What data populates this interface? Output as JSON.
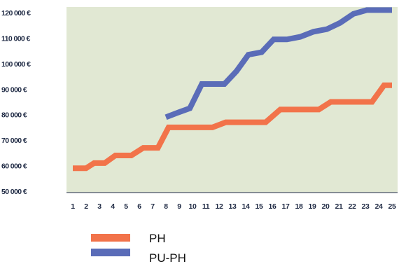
{
  "chart_data": {
    "type": "line",
    "x": [
      1,
      2,
      3,
      4,
      5,
      6,
      7,
      8,
      9,
      10,
      11,
      12,
      13,
      14,
      15,
      16,
      17,
      18,
      19,
      20,
      21,
      22,
      23,
      24,
      25
    ],
    "x_tick_labels": [
      "1",
      "2",
      "3",
      "4",
      "5",
      "6",
      "7",
      "8",
      "9",
      "10",
      "11",
      "12",
      "13",
      "14",
      "15",
      "16",
      "17",
      "18",
      "19",
      "20",
      "21",
      "22",
      "23",
      "24",
      "25"
    ],
    "y_tick_labels": [
      "50 000 €",
      "60 000 €",
      "70 000 €",
      "80 000 €",
      "90 000 €",
      "100 000 €",
      "110 000 €",
      "120 000 €"
    ],
    "y_ticks": [
      50000,
      60000,
      70000,
      80000,
      90000,
      100000,
      110000,
      120000
    ],
    "ylim": [
      50000,
      121000
    ],
    "xlim": [
      1,
      25
    ],
    "grid": false,
    "background_color": "#e1e8d3",
    "series": [
      {
        "name": "PH",
        "color": "#f2734a",
        "points": [
          [
            1,
            59000
          ],
          [
            2,
            59000
          ],
          [
            2.6,
            61000
          ],
          [
            3.4,
            61000
          ],
          [
            4.2,
            64000
          ],
          [
            5.4,
            64000
          ],
          [
            6.3,
            67000
          ],
          [
            7.4,
            67000
          ],
          [
            8.2,
            75000
          ],
          [
            9.4,
            75000
          ],
          [
            10.5,
            75000
          ],
          [
            11.5,
            75000
          ],
          [
            12.5,
            77000
          ],
          [
            13.5,
            77000
          ],
          [
            14.5,
            77000
          ],
          [
            15.5,
            77000
          ],
          [
            16.6,
            82000
          ],
          [
            17.5,
            82000
          ],
          [
            18.5,
            82000
          ],
          [
            19.5,
            82000
          ],
          [
            20.4,
            85000
          ],
          [
            21.5,
            85000
          ],
          [
            22.5,
            85000
          ],
          [
            23.5,
            85000
          ],
          [
            24.4,
            91500
          ],
          [
            25,
            91500
          ]
        ]
      },
      {
        "name": "PU-PH",
        "color": "#5a6cb8",
        "points": [
          [
            8,
            79000
          ],
          [
            9,
            81000
          ],
          [
            9.8,
            82500
          ],
          [
            10.7,
            92000
          ],
          [
            11.5,
            92000
          ],
          [
            12.4,
            92000
          ],
          [
            13.3,
            97000
          ],
          [
            14.2,
            103500
          ],
          [
            15.2,
            104500
          ],
          [
            16.1,
            109500
          ],
          [
            17.1,
            109500
          ],
          [
            18.1,
            110500
          ],
          [
            19.1,
            112500
          ],
          [
            20.1,
            113500
          ],
          [
            21.1,
            116000
          ],
          [
            22.1,
            119500
          ],
          [
            23.1,
            121000
          ],
          [
            24,
            121000
          ],
          [
            25,
            121000
          ]
        ]
      }
    ],
    "legend": {
      "position": "bottom-left",
      "entries": [
        "PH",
        "PU-PH"
      ]
    }
  }
}
